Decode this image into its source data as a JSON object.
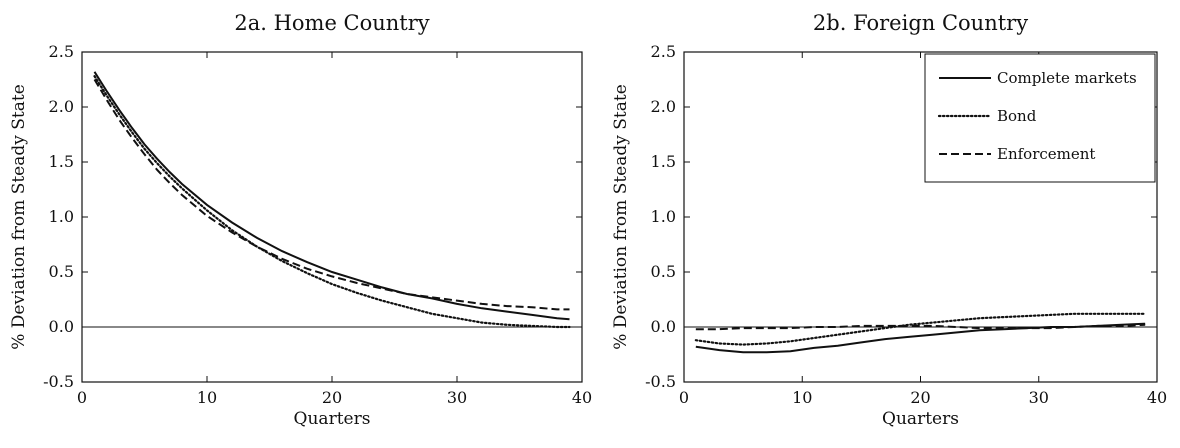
{
  "chart_data": [
    {
      "type": "line",
      "title": "2a. Home Country",
      "xlabel": "Quarters",
      "ylabel": "% Deviation from Steady State",
      "xlim": [
        0,
        40
      ],
      "ylim": [
        -0.5,
        2.5
      ],
      "xticks": [
        "0",
        "10",
        "20",
        "30",
        "40"
      ],
      "yticks": [
        "-0.5",
        "0.0",
        "0.5",
        "1.0",
        "1.5",
        "2.0",
        "2.5"
      ],
      "grid": false,
      "zero_line": true,
      "series": [
        {
          "style": "solid",
          "x": [
            1,
            2,
            3,
            4,
            5,
            6,
            7,
            8,
            10,
            12,
            14,
            16,
            18,
            20,
            22,
            24,
            26,
            28,
            30,
            32,
            34,
            36,
            38,
            39
          ],
          "y": [
            2.32,
            2.14,
            1.97,
            1.81,
            1.66,
            1.53,
            1.41,
            1.3,
            1.11,
            0.95,
            0.81,
            0.69,
            0.59,
            0.5,
            0.43,
            0.36,
            0.3,
            0.26,
            0.21,
            0.17,
            0.14,
            0.11,
            0.08,
            0.07
          ]
        },
        {
          "style": "dotted",
          "x": [
            1,
            2,
            3,
            4,
            5,
            6,
            7,
            8,
            10,
            12,
            14,
            16,
            18,
            20,
            22,
            24,
            26,
            28,
            30,
            32,
            34,
            36,
            38,
            39
          ],
          "y": [
            2.28,
            2.1,
            1.93,
            1.77,
            1.62,
            1.49,
            1.37,
            1.26,
            1.06,
            0.88,
            0.73,
            0.6,
            0.49,
            0.39,
            0.31,
            0.24,
            0.18,
            0.12,
            0.08,
            0.04,
            0.02,
            0.01,
            0.0,
            0.0
          ]
        },
        {
          "style": "dashed",
          "x": [
            1,
            2,
            3,
            4,
            5,
            6,
            7,
            8,
            10,
            12,
            14,
            16,
            18,
            20,
            22,
            24,
            26,
            28,
            30,
            32,
            34,
            36,
            38,
            39
          ],
          "y": [
            2.25,
            2.06,
            1.88,
            1.72,
            1.57,
            1.43,
            1.31,
            1.2,
            1.01,
            0.86,
            0.73,
            0.62,
            0.53,
            0.46,
            0.4,
            0.35,
            0.3,
            0.27,
            0.24,
            0.21,
            0.19,
            0.18,
            0.16,
            0.16
          ]
        }
      ]
    },
    {
      "type": "line",
      "title": "2b. Foreign Country",
      "xlabel": "Quarters",
      "ylabel": "% Deviation from Steady State",
      "xlim": [
        0,
        40
      ],
      "ylim": [
        -0.5,
        2.5
      ],
      "xticks": [
        "0",
        "10",
        "20",
        "30",
        "40"
      ],
      "yticks": [
        "-0.5",
        "0.0",
        "0.5",
        "1.0",
        "1.5",
        "2.0",
        "2.5"
      ],
      "grid": false,
      "zero_line": true,
      "legend": {
        "placement": "top-right",
        "entries": [
          {
            "label": "Complete markets",
            "style": "solid"
          },
          {
            "label": "Bond",
            "style": "dotted"
          },
          {
            "label": "Enforcement",
            "style": "dashed"
          }
        ]
      },
      "series": [
        {
          "name": "Complete markets",
          "style": "solid",
          "x": [
            1,
            3,
            5,
            7,
            9,
            11,
            13,
            15,
            17,
            19,
            21,
            23,
            25,
            27,
            29,
            31,
            33,
            35,
            37,
            39
          ],
          "y": [
            -0.18,
            -0.21,
            -0.23,
            -0.23,
            -0.22,
            -0.19,
            -0.17,
            -0.14,
            -0.11,
            -0.09,
            -0.07,
            -0.05,
            -0.03,
            -0.02,
            -0.01,
            0.0,
            0.0,
            0.01,
            0.02,
            0.03
          ]
        },
        {
          "name": "Bond",
          "style": "dotted",
          "x": [
            1,
            3,
            5,
            7,
            9,
            11,
            13,
            15,
            17,
            19,
            21,
            23,
            25,
            27,
            29,
            31,
            33,
            35,
            37,
            39
          ],
          "y": [
            -0.12,
            -0.15,
            -0.16,
            -0.15,
            -0.13,
            -0.1,
            -0.07,
            -0.04,
            -0.01,
            0.02,
            0.04,
            0.06,
            0.08,
            0.09,
            0.1,
            0.11,
            0.12,
            0.12,
            0.12,
            0.12
          ]
        },
        {
          "name": "Enforcement",
          "style": "dashed",
          "x": [
            1,
            3,
            5,
            7,
            9,
            11,
            13,
            15,
            17,
            19,
            21,
            23,
            25,
            27,
            29,
            31,
            33,
            35,
            37,
            39
          ],
          "y": [
            -0.02,
            -0.02,
            -0.01,
            -0.01,
            -0.01,
            0.0,
            0.0,
            0.01,
            0.01,
            0.01,
            0.01,
            0.0,
            -0.01,
            -0.01,
            -0.01,
            -0.01,
            0.0,
            0.01,
            0.01,
            0.02
          ]
        }
      ]
    }
  ]
}
